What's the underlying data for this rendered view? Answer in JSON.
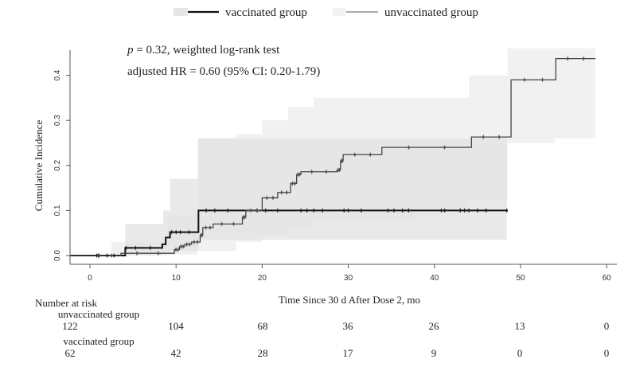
{
  "chart_data": {
    "type": "line",
    "subtype": "cumulative-incidence-step",
    "title": "",
    "xlabel": "Time Since 30 d After Dose 2, mo",
    "ylabel": "Cumulative Incidence",
    "xlim": [
      -2.3,
      61
    ],
    "ylim": [
      -0.02,
      0.46
    ],
    "xticks": [
      0,
      10,
      20,
      30,
      40,
      50,
      60
    ],
    "xtick_labels": [
      "0",
      "10",
      "20",
      "30",
      "40",
      "50",
      "60"
    ],
    "yticks": [
      0,
      0.1,
      0.2,
      0.3,
      0.4
    ],
    "ytick_labels": [
      "0.0",
      "0.1",
      "0.2",
      "0.3",
      "0.4"
    ],
    "grid": false,
    "legend": {
      "placement": "top-center",
      "entries": [
        "vaccinated group",
        "unvaccinated group"
      ]
    },
    "annotations": {
      "p_prefix": "p",
      "p_text": " = 0.32, weighted log-rank test",
      "hr_text": "adjusted HR = 0.60 (95% CI: 0.20-1.79)"
    },
    "series": [
      {
        "name": "vaccinated group",
        "color": "#111111",
        "band_color": "#e4e4e4",
        "x": [
          0,
          4.1,
          8.4,
          8.8,
          9.3,
          12.6,
          48.4
        ],
        "y": [
          0,
          0.017,
          0.025,
          0.04,
          0.052,
          0.1,
          0.1
        ],
        "ci_x": [
          0,
          4.1,
          8.5,
          9.3,
          12.6,
          48.4
        ],
        "ci_lower": [
          0,
          0,
          0.003,
          0.01,
          0.035,
          0.035
        ],
        "ci_upper": [
          0,
          0.07,
          0.1,
          0.17,
          0.26,
          0.26
        ],
        "censor_x": [
          0.8,
          1,
          2,
          2.8,
          4.2,
          5.3,
          7,
          9.5,
          10,
          10.5,
          11.5,
          13.5,
          14.5,
          16,
          19.4,
          20.4,
          21.8,
          24.5,
          25.2,
          26,
          27,
          29.5,
          30,
          31.5,
          34.6,
          35.3,
          36.3,
          37,
          40.8,
          41.2,
          43,
          43.5,
          44,
          45,
          46,
          48.4
        ]
      },
      {
        "name": "unvaccinated group",
        "color": "#444444",
        "band_color": "#f1f1f1",
        "x": [
          0,
          3.6,
          9.8,
          10.4,
          11,
          11.8,
          12.8,
          13.1,
          14.3,
          17.7,
          18.1,
          20,
          21.8,
          23.3,
          24,
          24.5,
          28.7,
          29.1,
          29.4,
          33.9,
          44.3,
          48.9,
          54.1,
          58.7
        ],
        "y": [
          0,
          0.005,
          0.013,
          0.02,
          0.025,
          0.03,
          0.045,
          0.062,
          0.07,
          0.085,
          0.1,
          0.128,
          0.14,
          0.16,
          0.18,
          0.186,
          0.19,
          0.21,
          0.224,
          0.24,
          0.263,
          0.39,
          0.437,
          0.437
        ],
        "ci_x": [
          0,
          2.5,
          9,
          12.5,
          17,
          20,
          23,
          26,
          38,
          44,
          48.5,
          54,
          58.7
        ],
        "ci_lower": [
          0,
          0,
          0.002,
          0.01,
          0.03,
          0.045,
          0.06,
          0.08,
          0.1,
          0.12,
          0.25,
          0.26,
          0.26
        ],
        "ci_upper": [
          0,
          0.03,
          0.09,
          0.26,
          0.27,
          0.3,
          0.33,
          0.35,
          0.35,
          0.4,
          0.46,
          0.46,
          0.46
        ]
      }
    ]
  },
  "risk_table": {
    "title": "Number at risk",
    "times": [
      0,
      10,
      20,
      30,
      40,
      50,
      60
    ],
    "rows": [
      {
        "label": "unvaccinated group",
        "values": [
          "122",
          "104",
          "68",
          "36",
          "26",
          "13",
          "0"
        ]
      },
      {
        "label": "vaccinated group",
        "values": [
          "62",
          "42",
          "28",
          "17",
          "9",
          "0",
          "0"
        ]
      }
    ]
  }
}
